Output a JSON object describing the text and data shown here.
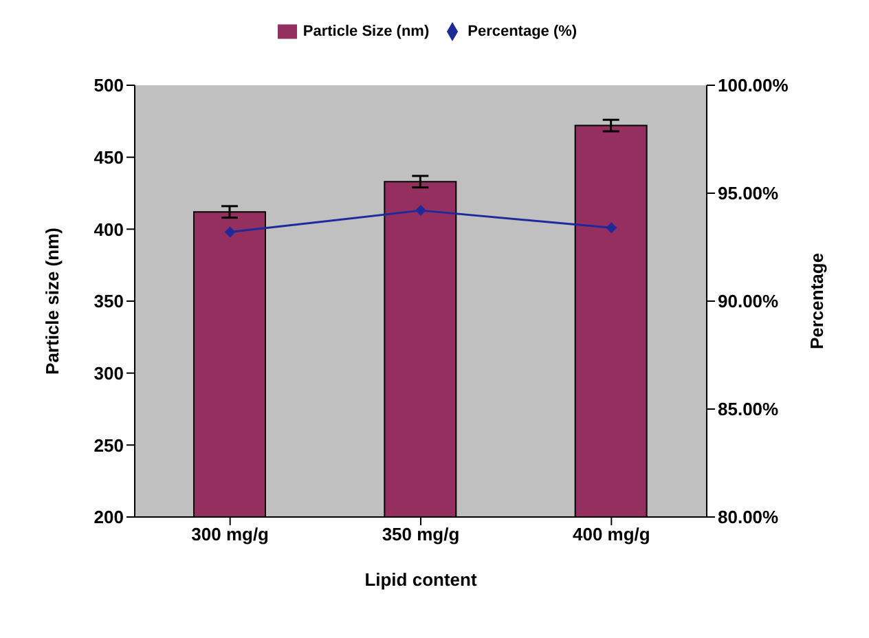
{
  "chart_data": {
    "type": "bar",
    "xlabel": "Lipid content",
    "ylabel": "Particle size (nm)",
    "y2label": "Percentage",
    "categories": [
      "300 mg/g",
      "350 mg/g",
      "400 mg/g"
    ],
    "series": [
      {
        "name": "Particle Size (nm)",
        "color": "#952f5f",
        "values": [
          412,
          433,
          472
        ],
        "errors": [
          4,
          4,
          4
        ]
      },
      {
        "name": "Percentage (%)",
        "type": "line",
        "axis": "y2",
        "color": "#1f2a9a",
        "values": [
          93.2,
          94.2,
          93.4
        ],
        "marker": "diamond"
      }
    ],
    "ylim": [
      200,
      500
    ],
    "yticks": [
      200,
      250,
      300,
      350,
      400,
      450,
      500
    ],
    "y2lim": [
      80,
      100
    ],
    "y2ticks": [
      {
        "value": 80,
        "label": "80.00%"
      },
      {
        "value": 85,
        "label": "85.00%"
      },
      {
        "value": 90,
        "label": "90.00%"
      },
      {
        "value": 95,
        "label": "95.00%"
      },
      {
        "value": 100,
        "label": "100.00%"
      }
    ],
    "grid": false,
    "legend": "top"
  }
}
